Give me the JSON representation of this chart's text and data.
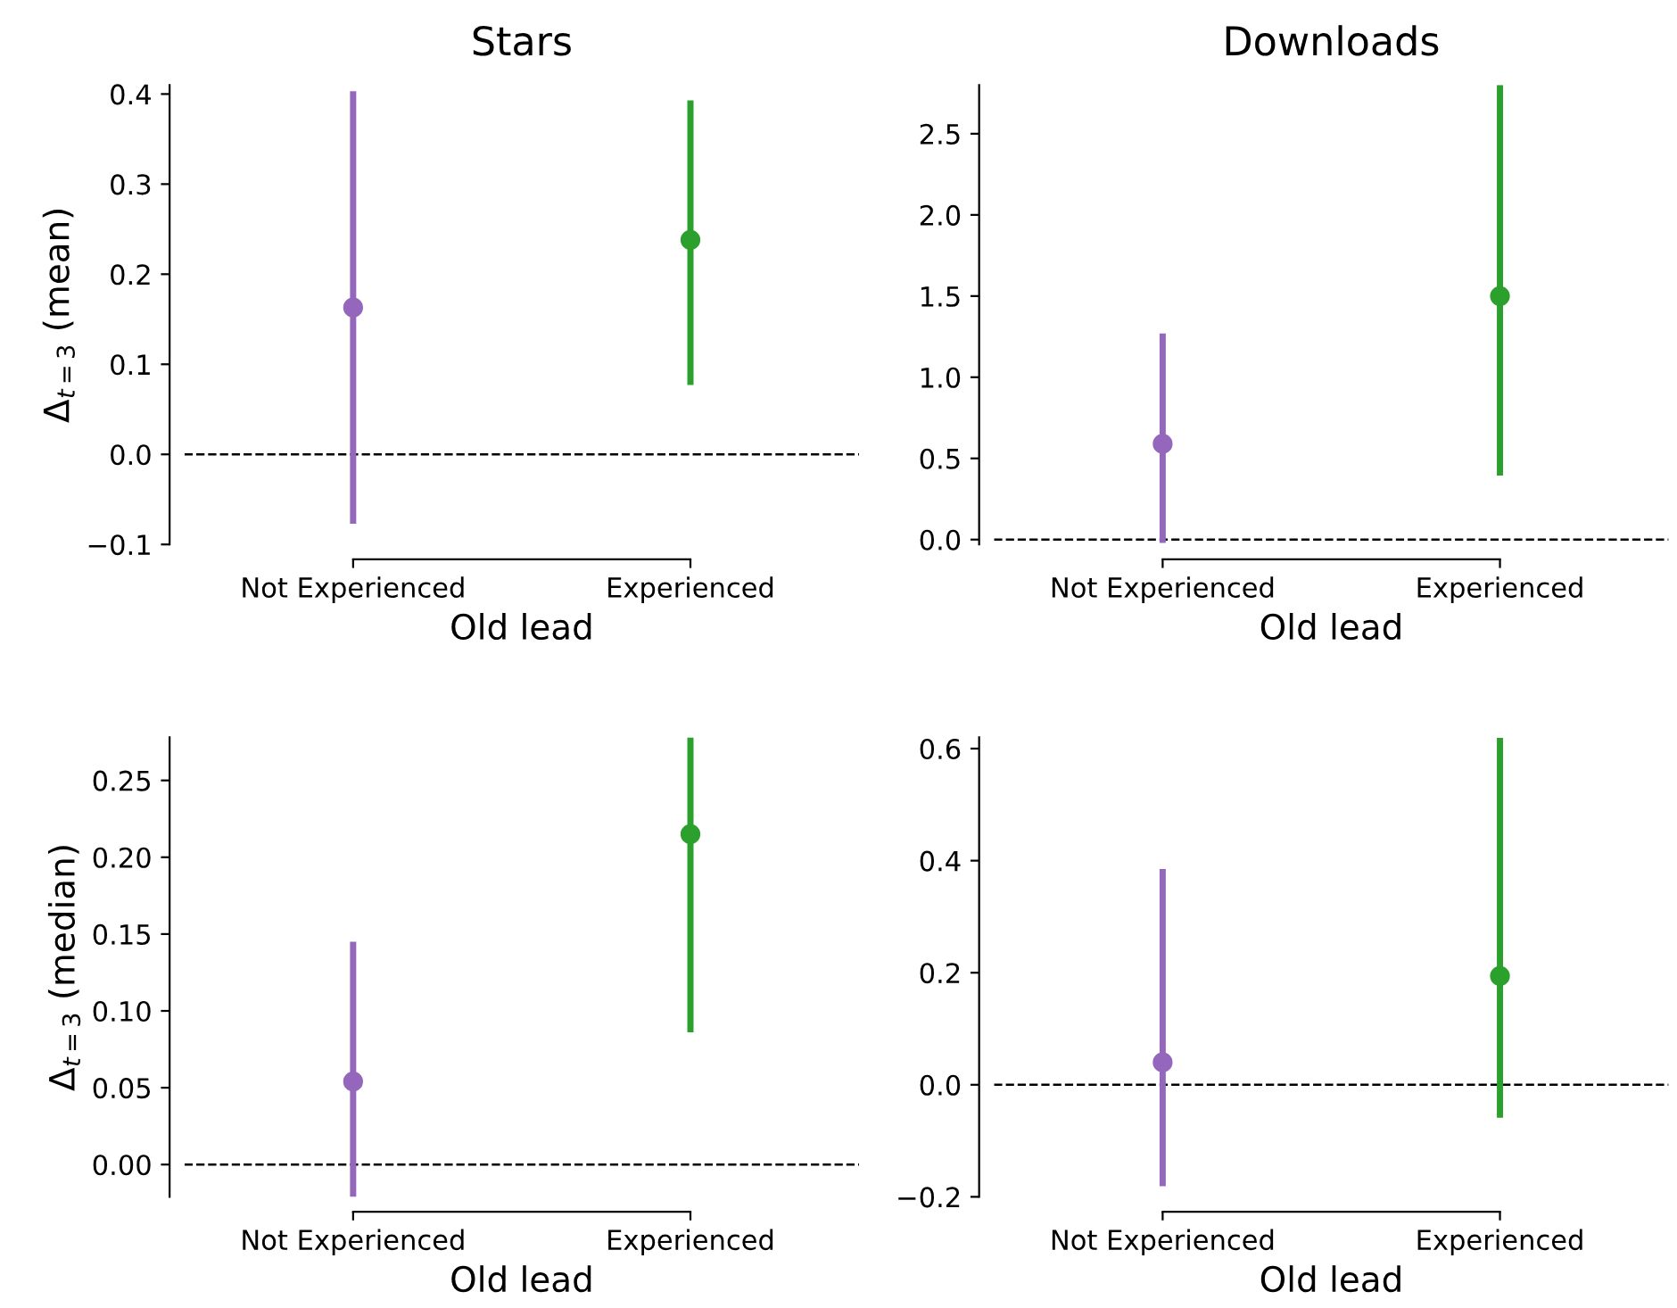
{
  "chart_data": [
    {
      "type": "scatter",
      "title": "Stars",
      "xlabel": "Old lead",
      "ylabel": "Δ$_{t=3}$ (mean)",
      "categories": [
        "Not Experienced",
        "Experienced"
      ],
      "values": [
        0.163,
        0.238
      ],
      "colors": [
        "#9467bd",
        "#2ca02c"
      ],
      "errors": [
        [
          -0.077,
          0.403
        ],
        [
          0.077,
          0.393
        ]
      ],
      "marker": "circle",
      "ylim": [
        -0.1,
        0.41
      ],
      "yticks": [
        {
          "value": -0.1,
          "label": "−0.1"
        },
        {
          "value": 0,
          "label": "0.0"
        },
        0.1,
        0.2,
        0.3,
        0.4
      ],
      "ref_lines": [
        {
          "axis": "y",
          "value": 0,
          "color": "#000000",
          "line_style": "dashed"
        }
      ]
    },
    {
      "type": "scatter",
      "title": "Downloads",
      "xlabel": "Old lead",
      "categories": [
        "Not Experienced",
        "Experienced"
      ],
      "values": [
        0.59,
        1.5
      ],
      "colors": [
        "#9467bd",
        "#2ca02c"
      ],
      "errors": [
        [
          -0.02,
          1.27
        ],
        [
          0.395,
          2.8
        ]
      ],
      "marker": "circle",
      "ylim": [
        -0.03,
        2.8
      ],
      "yticks": [
        {
          "value": 0,
          "label": "0.0"
        },
        0.5,
        {
          "value": 1,
          "label": "1.0"
        },
        1.5,
        {
          "value": 2,
          "label": "2.0"
        },
        2.5
      ],
      "ref_lines": [
        {
          "axis": "y",
          "value": 0,
          "color": "#000000",
          "line_style": "dashed"
        }
      ]
    },
    {
      "type": "scatter",
      "xlabel": "Old lead",
      "ylabel": "Δ$_{t=3}$ (median)",
      "categories": [
        "Not Experienced",
        "Experienced"
      ],
      "values": [
        0.054,
        0.215
      ],
      "colors": [
        "#9467bd",
        "#2ca02c"
      ],
      "errors": [
        [
          -0.021,
          0.145
        ],
        [
          0.086,
          0.278
        ]
      ],
      "marker": "circle",
      "ylim": [
        -0.021,
        0.278
      ],
      "yticks": [
        {
          "value": 0,
          "label": "0.00"
        },
        0.05,
        {
          "value": 0.1,
          "label": "0.10"
        },
        0.15,
        {
          "value": 0.2,
          "label": "0.20"
        },
        0.25
      ],
      "ref_lines": [
        {
          "axis": "y",
          "value": 0,
          "color": "#000000",
          "line_style": "dashed"
        }
      ]
    },
    {
      "type": "scatter",
      "xlabel": "Old lead",
      "categories": [
        "Not Experienced",
        "Experienced"
      ],
      "values": [
        0.04,
        0.194
      ],
      "colors": [
        "#9467bd",
        "#2ca02c"
      ],
      "errors": [
        [
          -0.181,
          0.385
        ],
        [
          -0.059,
          0.619
        ]
      ],
      "marker": "circle",
      "ylim": [
        -0.2,
        0.62
      ],
      "yticks": [
        {
          "value": -0.2,
          "label": "−0.2"
        },
        {
          "value": 0,
          "label": "0.0"
        },
        0.2,
        0.4,
        0.6
      ],
      "ref_lines": [
        {
          "axis": "y",
          "value": 0,
          "color": "#000000",
          "line_style": "dashed"
        }
      ]
    }
  ]
}
